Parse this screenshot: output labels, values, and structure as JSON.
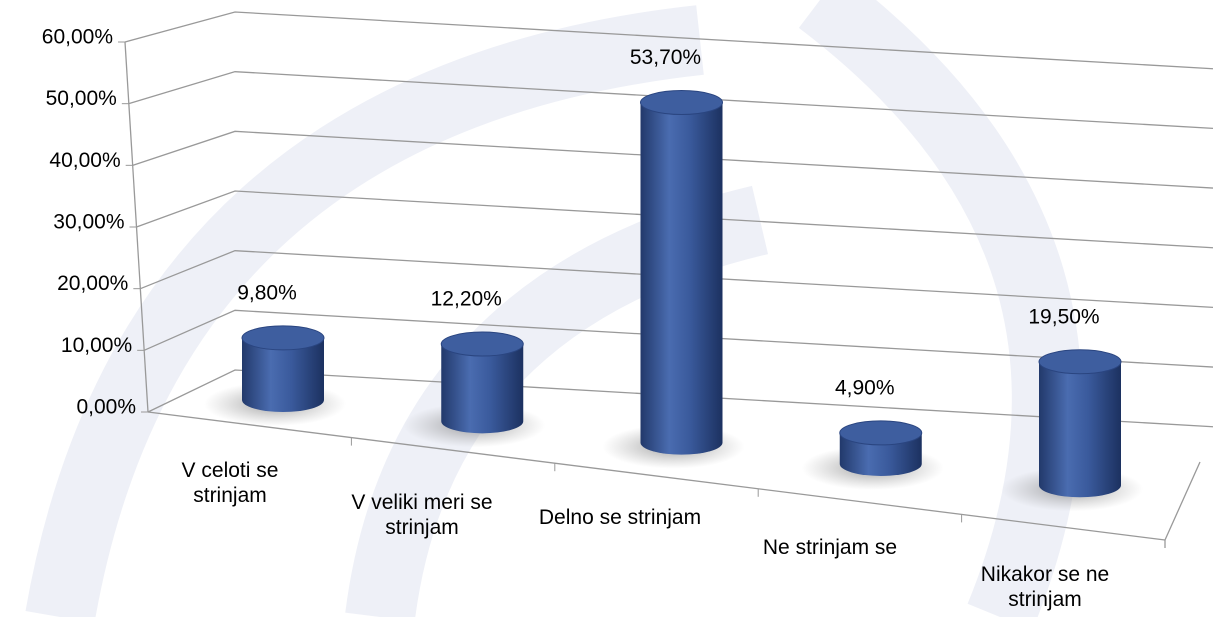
{
  "chart_data": {
    "type": "bar3d",
    "categories": [
      "V celoti se strinjam",
      "V veliki meri se strinjam",
      "Delno se strinjam",
      "Ne strinjam se",
      "Nikakor se ne strinjam"
    ],
    "values": [
      9.8,
      12.2,
      53.7,
      4.9,
      19.5
    ],
    "value_labels": [
      "9,80%",
      "12,20%",
      "53,70%",
      "4,90%",
      "19,50%"
    ],
    "color": "#34559a",
    "ylim": [
      0,
      60
    ],
    "yticks": [
      {
        "value": 0,
        "label": "0,00%"
      },
      {
        "value": 10,
        "label": "10,00%"
      },
      {
        "value": 20,
        "label": "20,00%"
      },
      {
        "value": 30,
        "label": "30,00%"
      },
      {
        "value": 40,
        "label": "40,00%"
      },
      {
        "value": 50,
        "label": "50,00%"
      },
      {
        "value": 60,
        "label": "60,00%"
      }
    ],
    "grid": true
  }
}
